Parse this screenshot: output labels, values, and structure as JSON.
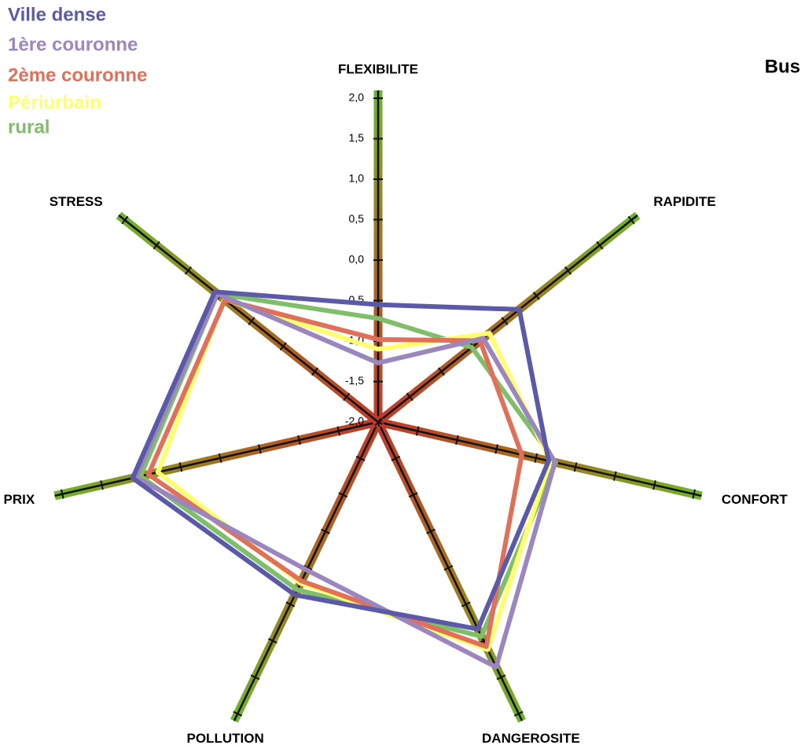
{
  "chart_data": {
    "type": "radar",
    "title": "Bus",
    "categories": [
      "FLEXIBILITE",
      "RAPIDITE",
      "CONFORT",
      "DANGEROSITE",
      "POLLUTION",
      "PRIX",
      "STRESS"
    ],
    "ylim": [
      -2,
      2
    ],
    "yticks": [
      {
        "value": -2,
        "label": "-2,0"
      },
      {
        "value": -1.5,
        "label": "-1,5"
      },
      {
        "value": -1,
        "label": "-1,0"
      },
      {
        "value": -0.5,
        "label": "-0,5"
      },
      {
        "value": 0,
        "label": "0,0"
      },
      {
        "value": 0.5,
        "label": "0,5"
      },
      {
        "value": 1,
        "label": "1,0"
      },
      {
        "value": 1.5,
        "label": "1,5"
      },
      {
        "value": 2,
        "label": "2,0"
      }
    ],
    "series": [
      {
        "name": "Ville dense",
        "color": "#5b5aa8",
        "values": [
          -0.55,
          0.23,
          0.16,
          0.84,
          0.37,
          1.11,
          0.58
        ]
      },
      {
        "name": "1ère couronne",
        "color": "#9b86bd",
        "values": [
          -1.27,
          -0.34,
          0.24,
          1.36,
          0.03,
          1.07,
          0.54
        ]
      },
      {
        "name": "2ème couronne",
        "color": "#e0705a",
        "values": [
          -0.98,
          -0.39,
          -0.18,
          1.08,
          0.18,
          0.91,
          0.42
        ]
      },
      {
        "name": "Périurbain",
        "color": "#ffff70",
        "values": [
          -1.1,
          -0.24,
          0.18,
          1.12,
          0.21,
          0.79,
          0.43
        ]
      },
      {
        "name": "rural",
        "color": "#7fbf6a",
        "values": [
          -0.72,
          -0.52,
          0.25,
          0.94,
          0.3,
          1.01,
          0.54
        ]
      }
    ]
  }
}
